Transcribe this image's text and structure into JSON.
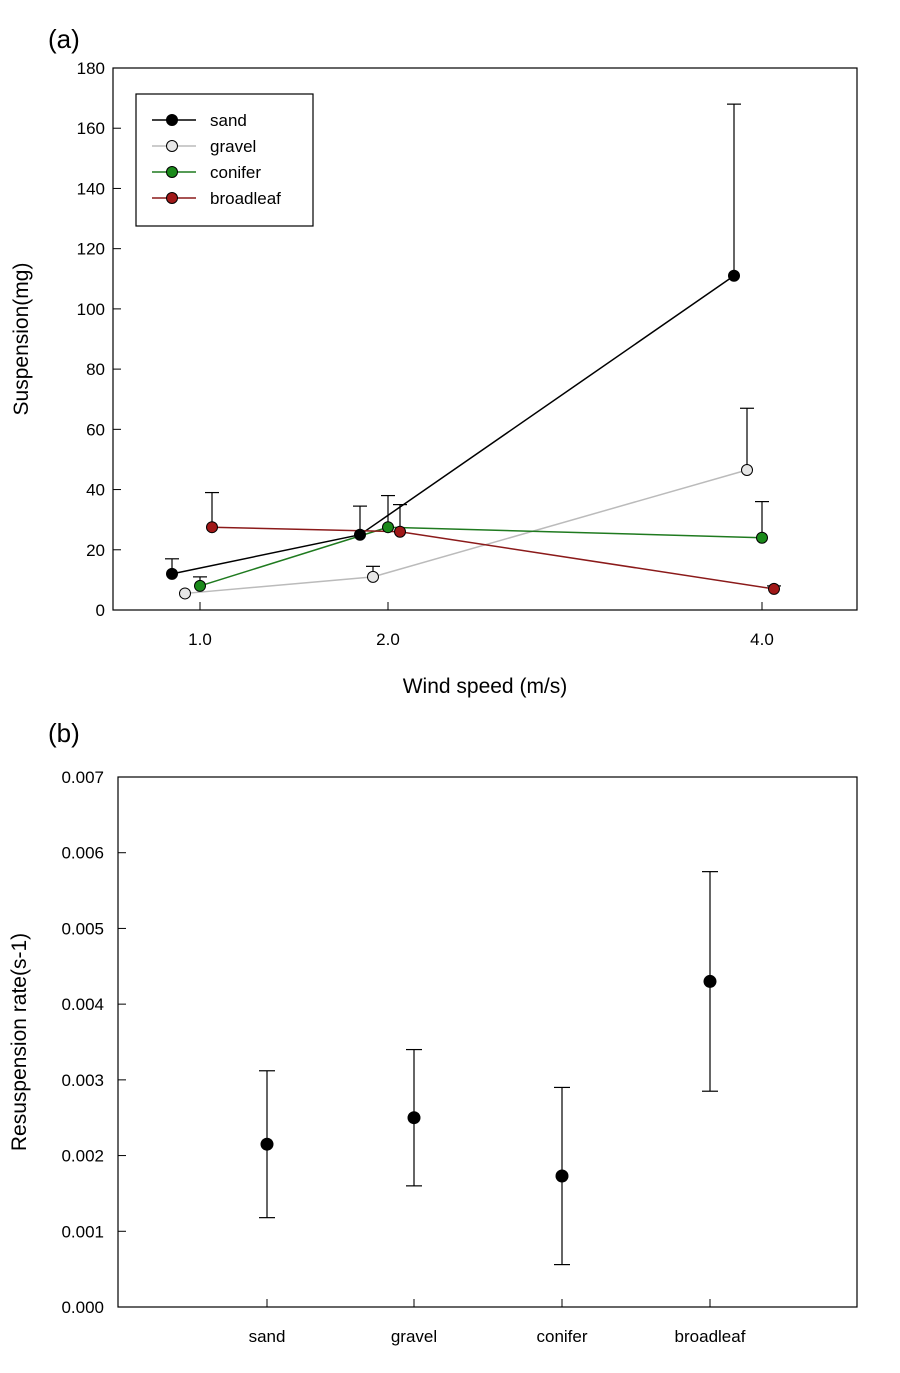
{
  "chart_data": [
    {
      "panel_label": "(a)",
      "type": "line",
      "xlabel": "Wind speed (m/s)",
      "ylabel": "Suspension(mg)",
      "x_tick_labels": [
        "1.0",
        "2.0",
        "4.0"
      ],
      "ylim": [
        0,
        180
      ],
      "y_ticks": [
        0,
        20,
        40,
        60,
        80,
        100,
        120,
        140,
        160,
        180
      ],
      "grid": false,
      "legend_position": "top-left",
      "series": [
        {
          "name": "sand",
          "color": "#000000",
          "marker_fill": "#000000",
          "x": [
            1.0,
            2.0,
            4.0
          ],
          "y": [
            12,
            25,
            111
          ],
          "err": [
            5,
            9.5,
            57
          ]
        },
        {
          "name": "gravel",
          "color": "#bbbbbb",
          "marker_fill": "#e6e6e6",
          "x": [
            1.0,
            2.0,
            4.0
          ],
          "y": [
            5.5,
            11,
            46.5
          ],
          "err": [
            0,
            3.5,
            20.5
          ]
        },
        {
          "name": "conifer",
          "color": "#1f7a1f",
          "marker_fill": "#1a8a1a",
          "x": [
            1.0,
            2.0,
            4.0
          ],
          "y": [
            8,
            27.5,
            24
          ],
          "err": [
            3,
            10.5,
            12
          ]
        },
        {
          "name": "broadleaf",
          "color": "#8b1a1a",
          "marker_fill": "#a01818",
          "x": [
            1.0,
            2.0,
            4.0
          ],
          "y": [
            27.5,
            26,
            7
          ],
          "err": [
            11.5,
            9,
            1
          ]
        }
      ]
    },
    {
      "panel_label": "(b)",
      "type": "scatter",
      "xlabel": "",
      "ylabel": "Resuspension rate(s-1)",
      "categories": [
        "sand",
        "gravel",
        "conifer",
        "broadleaf"
      ],
      "values": [
        0.00215,
        0.0025,
        0.00173,
        0.0043
      ],
      "err": [
        0.00097,
        0.0009,
        0.00117,
        0.00145
      ],
      "ylim": [
        0,
        0.007
      ],
      "y_tick_labels": [
        "0.000",
        "0.001",
        "0.002",
        "0.003",
        "0.004",
        "0.005",
        "0.006",
        "0.007"
      ],
      "grid": false
    }
  ]
}
